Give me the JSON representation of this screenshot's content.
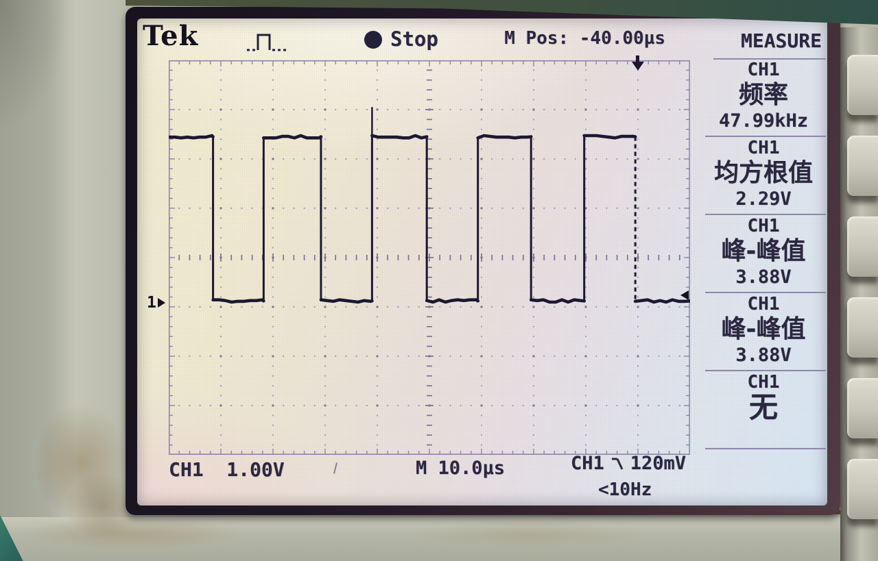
{
  "brand": "Tek",
  "status_bar": {
    "acq_state": "Stop",
    "m_position": "M Pos: -40.00µs",
    "acq_icon": "stop-dot",
    "trigger_type_icon": "pulse-train"
  },
  "sidebar": {
    "title": "MEASURE",
    "measurements": [
      {
        "source": "CH1",
        "type": "频率",
        "value": "47.99kHz"
      },
      {
        "source": "CH1",
        "type": "均方根值",
        "value": "2.29V"
      },
      {
        "source": "CH1",
        "type": "峰-峰值",
        "value": "3.88V"
      },
      {
        "source": "CH1",
        "type": "峰-峰值",
        "value": "3.88V"
      },
      {
        "source": "CH1",
        "type": "无",
        "value": ""
      }
    ]
  },
  "bottom_bar": {
    "ch1_scale": "CH1  1.00V",
    "timebase": "M 10.0µs",
    "trigger_source": "CH1",
    "trigger_slope_icon": "falling-edge",
    "trigger_level": "120mV",
    "trigger_frequency": "<10Hz"
  },
  "graticule_markers": {
    "channel_label": "1",
    "trigger_position_icon": "down-arrow",
    "trigger_level_icon": "left-arrow"
  },
  "chart_data": {
    "type": "line",
    "signal": "square-wave",
    "channel": "CH1",
    "volts_per_div": 1.0,
    "time_per_div": "10.0µs",
    "grid_divs": {
      "x": 10,
      "y": 8
    },
    "levels_div_from_top": {
      "high": 1.55,
      "low": 4.88
    },
    "start_level": "high",
    "edges": [
      {
        "x_div": 0.85,
        "dir": "fall"
      },
      {
        "x_div": 1.82,
        "dir": "rise"
      },
      {
        "x_div": 2.92,
        "dir": "fall"
      },
      {
        "x_div": 3.9,
        "dir": "rise",
        "spike_top_div": 0.95
      },
      {
        "x_div": 4.95,
        "dir": "fall"
      },
      {
        "x_div": 5.93,
        "dir": "rise"
      },
      {
        "x_div": 6.95,
        "dir": "fall"
      },
      {
        "x_div": 7.97,
        "dir": "rise"
      },
      {
        "x_div": 8.95,
        "dir": "fall",
        "dashed": true
      }
    ],
    "trigger_position_div": 9.0,
    "trigger_level_div": 4.76,
    "ground_marker_div": 4.93,
    "measured": {
      "frequency": "47.99kHz",
      "rms": "2.29V",
      "peak_to_peak": "3.88V"
    }
  }
}
